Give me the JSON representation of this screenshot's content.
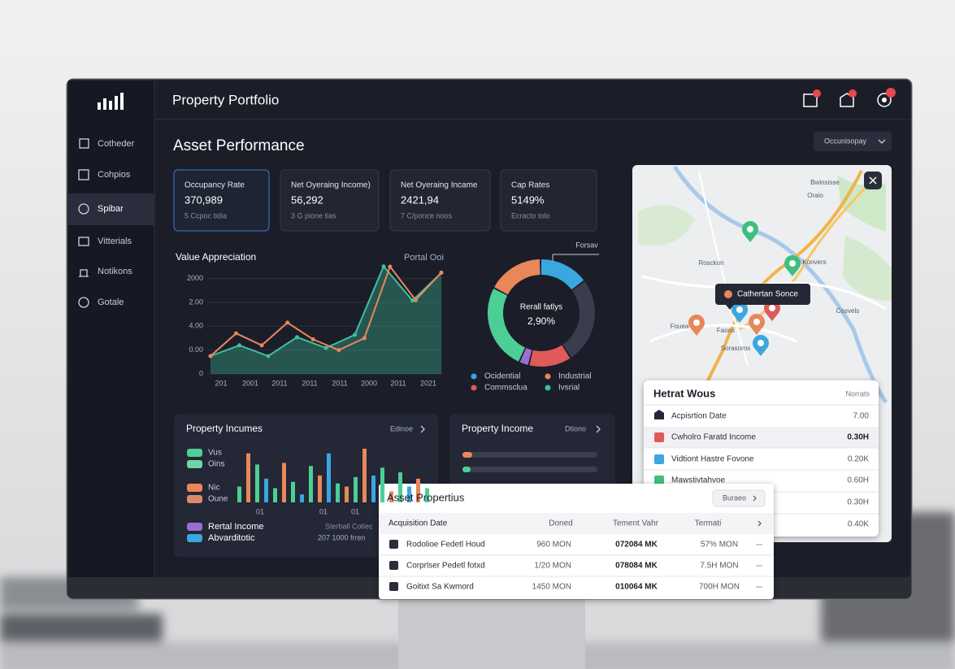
{
  "header": {
    "title": "Property Portfolio"
  },
  "sidebar": {
    "items": [
      "Cotheder",
      "Cohpios",
      "Spibar",
      "Vitterials",
      "Notikons",
      "Gotale"
    ]
  },
  "main": {
    "title": "Asset Performance",
    "dropdown": "Occunisopay"
  },
  "kpis": [
    {
      "label": "Occupancy Rate",
      "value": "370,989",
      "sub": "5 Ccpoc tidia"
    },
    {
      "label": "Net Oyeraing Income)",
      "value": "56,292",
      "sub": "3 G pione tias"
    },
    {
      "label": "Net Oyeraing Incame",
      "value": "2421,94",
      "sub": "7 C/ponce noos"
    },
    {
      "label": "Cap Rates",
      "value": "5149%",
      "sub": "Ecracto tolo"
    }
  ],
  "value_appreciation": {
    "title": "Value Appreciation",
    "subtitle": "Portal Ooi",
    "ylim": [
      0,
      4.5
    ],
    "yticks": [
      {
        "value": 4,
        "label": "2000"
      },
      {
        "value": 3,
        "label": "2.00"
      },
      {
        "value": 2,
        "label": "4.00"
      },
      {
        "value": 1,
        "label": "0.00"
      },
      0
    ],
    "xlabels": [
      "201",
      "2001",
      "2011",
      "2011",
      "2011",
      "2000",
      "2011",
      "2021"
    ],
    "series": [
      {
        "color": "#3fbf9f",
        "values": [
          0.75,
          1.2,
          0.75,
          1.54,
          1.09,
          1.64,
          4.51,
          3.08,
          4.24
        ]
      },
      {
        "color": "#e8875a",
        "values": [
          0.75,
          1.7,
          1.2,
          2.15,
          1.45,
          1.0,
          1.5,
          4.5,
          3.1,
          4.25
        ]
      }
    ]
  },
  "donut": {
    "title": "Rerall fatlys",
    "center_value": "2,90%",
    "callout": "Forsav",
    "segments": [
      {
        "color": "#3aa7e0",
        "value": 15
      },
      {
        "color": "#3a3d4d",
        "value": 26
      },
      {
        "color": "#e05a5a",
        "value": 13
      },
      {
        "color": "#9a6fd0",
        "value": 3
      },
      {
        "color": "#4ccf95",
        "value": 26
      },
      {
        "color": "#e8875a",
        "value": 17
      }
    ],
    "legend": [
      {
        "label": "Ocidential",
        "color": "#3aa7e0"
      },
      {
        "label": "Industrial",
        "color": "#e8875a"
      },
      {
        "label": "Commsclua",
        "color": "#e05a5a"
      },
      {
        "label": "Ivsrial",
        "color": "#3fbf9f"
      }
    ]
  },
  "property_incomes": {
    "title": "Property Incumes",
    "link": "Edinoe",
    "legend": [
      {
        "label": "Vus",
        "color": "#4ccf95"
      },
      {
        "label": "Oins",
        "color": "#6fd6a8"
      },
      {
        "label": "Nic",
        "color": "#e8875a"
      },
      {
        "label": "Oune",
        "color": "#d98a6a"
      },
      {
        "label": "Rertal Income",
        "color": "#9a6fd0"
      },
      {
        "label": "Abvarditotic",
        "color": "#3aa7e0"
      }
    ],
    "bars": {
      "ylim": [
        0,
        70
      ],
      "values": [
        20,
        62,
        48,
        30,
        18,
        50,
        26,
        10,
        46,
        34,
        62,
        24,
        20,
        32,
        68,
        34,
        44,
        14,
        38,
        20,
        30,
        18
      ],
      "colors": [
        "#4ccf95",
        "#e8875a",
        "#4ccf95",
        "#3aa7e0",
        "#4ccf95",
        "#e8875a",
        "#4ccf95",
        "#3aa7e0",
        "#4ccf95",
        "#e8875a",
        "#3aa7e0",
        "#4ccf95",
        "#e8875a",
        "#4ccf95",
        "#e8875a",
        "#3aa7e0",
        "#4ccf95",
        "#e8875a",
        "#4ccf95",
        "#3aa7e0",
        "#e8875a",
        "#4ccf95"
      ]
    },
    "xlabels": [
      "01",
      "01",
      "01"
    ],
    "note": "Sterball Cotiec",
    "note_value": "207 1000 frren"
  },
  "property_income": {
    "title": "Property Income",
    "link": "Dtiono"
  },
  "map": {
    "tooltip": "Cathertan Sonce",
    "places": [
      "Bwinsisse",
      "Oraio",
      "Rosckon",
      "Konvers",
      "Fouea",
      "Faoos",
      "Sorasoros",
      "Cosvels"
    ]
  },
  "heat_card": {
    "title": "Hetrat Wous",
    "header": "Norrats",
    "rows": [
      {
        "label": "Acpisrtion Date",
        "value": "7.00"
      },
      {
        "label": "Cwholro Faratd Income",
        "value": "0.30H"
      },
      {
        "label": "Vidtiont Hastre Fovone",
        "value": "0.20K"
      },
      {
        "label": "Mawstivtahvoe",
        "value": "0.60H"
      },
      {
        "value": "0.30H"
      },
      {
        "value": "0.40K"
      }
    ]
  },
  "asset_properties": {
    "title": "Asset Propertius",
    "button": "Buraeo",
    "columns": [
      "Acquisition Date",
      "Doned",
      "Tement Vahr",
      "Termati"
    ],
    "rows": [
      [
        "Rodolioe Fedetl Houd",
        "960 MON",
        "072084 MK",
        "57% MON"
      ],
      [
        "Corprlser Pedetl fotxd",
        "1/20 MON",
        "078084 MK",
        "7.5H MON"
      ],
      [
        "Goitixt Sa Kwmord",
        "1450 MON",
        "010064 MK",
        "700H MON"
      ]
    ]
  }
}
